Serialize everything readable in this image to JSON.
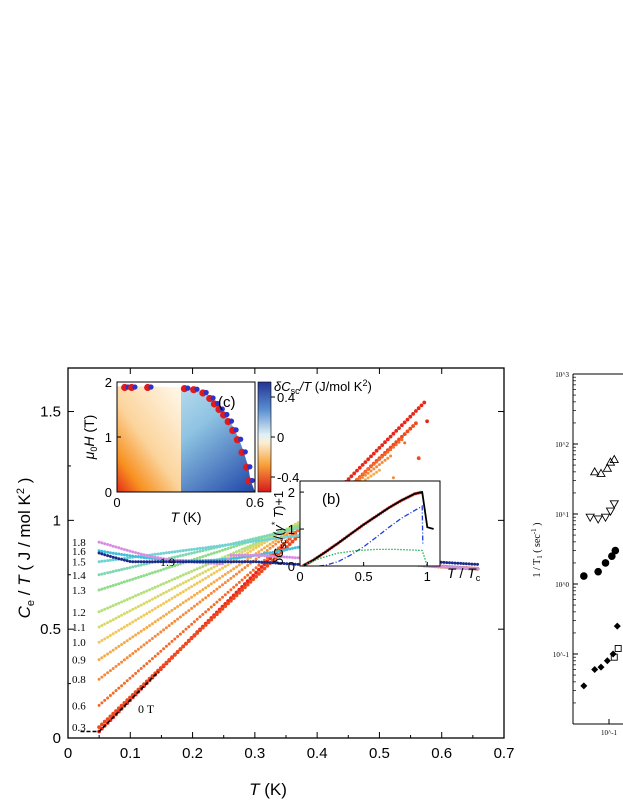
{
  "chart_data": [
    {
      "id": "main",
      "type": "scatter",
      "xlabel": "T (K)",
      "ylabel": "C_e / T ( J / mol K^2 )",
      "xlim": [
        0,
        0.7
      ],
      "ylim": [
        0,
        1.7
      ],
      "x_ticks": [
        "0",
        "0.1",
        "0.2",
        "0.3",
        "0.4",
        "0.5",
        "0.6",
        "0.7"
      ],
      "y_ticks": [
        "0",
        "0.5",
        "1",
        "1.5"
      ],
      "field_labels": [
        "1.8",
        "1.6",
        "1.5",
        "1.4",
        "1.3",
        "1.2",
        "1.1",
        "1.0",
        "0.9",
        "0.8",
        "0.6",
        "0.3"
      ],
      "annotations": [
        "1.9",
        "0 T"
      ],
      "series": [
        {
          "field": 0.0,
          "tc": 0.575,
          "c0": 0.03,
          "peak": 1.55,
          "color": "#e8271b"
        },
        {
          "field": 0.3,
          "tc": 0.56,
          "c0": 0.05,
          "peak": 1.45,
          "color": "#ef4a1e"
        },
        {
          "field": 0.6,
          "tc": 0.54,
          "c0": 0.15,
          "peak": 1.38,
          "color": "#f26b2a"
        },
        {
          "field": 0.8,
          "tc": 0.52,
          "c0": 0.27,
          "peak": 1.3,
          "color": "#f58a3a"
        },
        {
          "field": 0.9,
          "tc": 0.5,
          "c0": 0.36,
          "peak": 1.23,
          "color": "#f6ab48"
        },
        {
          "field": 1.0,
          "tc": 0.48,
          "c0": 0.44,
          "peak": 1.18,
          "color": "#f2c85a"
        },
        {
          "field": 1.1,
          "tc": 0.465,
          "c0": 0.51,
          "peak": 1.13,
          "color": "#d9d86a"
        },
        {
          "field": 1.2,
          "tc": 0.45,
          "c0": 0.58,
          "peak": 1.08,
          "color": "#b4e07a"
        },
        {
          "field": 1.3,
          "tc": 0.43,
          "c0": 0.68,
          "peak": 1.03,
          "color": "#8fdc8a"
        },
        {
          "field": 1.4,
          "tc": 0.41,
          "c0": 0.75,
          "peak": 0.99,
          "color": "#7fd8b2"
        },
        {
          "field": 1.5,
          "tc": 0.395,
          "c0": 0.81,
          "peak": 0.94,
          "color": "#70d2d4"
        },
        {
          "field": 1.6,
          "tc": 0.375,
          "c0": 0.86,
          "peak": 0.88,
          "color": "#3fbfdc"
        },
        {
          "field": 1.8,
          "tc": 0.25,
          "c0": 0.9,
          "peak": 0.8,
          "color": "#d88ee0"
        },
        {
          "field": 1.9,
          "tc": 0.0,
          "c0": 0.85,
          "peak": 0.76,
          "color": "#1b2b8c"
        }
      ],
      "normal_state": {
        "x": [
          0.3,
          0.7
        ],
        "y": [
          0.84,
          0.77
        ]
      }
    },
    {
      "id": "inset_c",
      "type": "heatmap",
      "panel_label": "(c)",
      "xlabel": "T (K)",
      "ylabel": "μ0H (T)",
      "colorbar_label": "δC_sc/T (J/mol K^2)",
      "colorbar_ticks": [
        "0.4",
        "0",
        "-0.4"
      ],
      "xlim": [
        0,
        0.6
      ],
      "ylim": [
        0,
        2
      ],
      "x_ticks": [
        "0",
        "0.6"
      ],
      "y_ticks": [
        "0",
        "1",
        "2"
      ],
      "boundary_points": [
        {
          "t": 0.04,
          "h": 1.9
        },
        {
          "t": 0.07,
          "h": 1.9
        },
        {
          "t": 0.14,
          "h": 1.9
        },
        {
          "t": 0.3,
          "h": 1.88
        },
        {
          "t": 0.34,
          "h": 1.86
        },
        {
          "t": 0.38,
          "h": 1.8
        },
        {
          "t": 0.41,
          "h": 1.7
        },
        {
          "t": 0.43,
          "h": 1.6
        },
        {
          "t": 0.45,
          "h": 1.5
        },
        {
          "t": 0.47,
          "h": 1.4
        },
        {
          "t": 0.49,
          "h": 1.28
        },
        {
          "t": 0.51,
          "h": 1.12
        },
        {
          "t": 0.53,
          "h": 0.95
        },
        {
          "t": 0.55,
          "h": 0.72
        },
        {
          "t": 0.57,
          "h": 0.45
        },
        {
          "t": 0.58,
          "h": 0.2
        }
      ]
    },
    {
      "id": "inset_b",
      "type": "line",
      "panel_label": "(b)",
      "xlabel": "T / T_c",
      "ylabel": "δC_sc/(γ* T)+1",
      "xlim": [
        0,
        1.1
      ],
      "ylim": [
        0,
        2.3
      ],
      "x_ticks": [
        "0",
        "0.5",
        "1"
      ],
      "y_ticks": [
        "0",
        "1",
        "2"
      ],
      "curves": [
        {
          "style": "total",
          "color": "#000000",
          "x": [
            0.03,
            0.1,
            0.2,
            0.3,
            0.4,
            0.5,
            0.6,
            0.7,
            0.8,
            0.9,
            0.96,
            1.0,
            1.05
          ],
          "y": [
            0.02,
            0.15,
            0.38,
            0.62,
            0.87,
            1.12,
            1.35,
            1.58,
            1.78,
            1.95,
            2.0,
            1.05,
            1.0
          ]
        },
        {
          "style": "dash-dot",
          "color": "#1e3fd8",
          "x": [
            0.15,
            0.2,
            0.3,
            0.4,
            0.5,
            0.6,
            0.7,
            0.8,
            0.9,
            0.96,
            0.965
          ],
          "y": [
            0.0,
            0.02,
            0.12,
            0.3,
            0.52,
            0.78,
            1.05,
            1.3,
            1.5,
            1.62,
            0.6
          ]
        },
        {
          "style": "dotted",
          "color": "#22b14c",
          "x": [
            0.05,
            0.15,
            0.3,
            0.45,
            0.6,
            0.75,
            0.9,
            0.96,
            1.0
          ],
          "y": [
            0.05,
            0.2,
            0.35,
            0.42,
            0.45,
            0.45,
            0.43,
            0.42,
            0.0
          ]
        }
      ]
    },
    {
      "id": "side_log",
      "type": "scatter",
      "ylabel": "1 / T_1 ( sec^-1 )",
      "y_ticks": [
        "10^3",
        "10^2",
        "10^1",
        "10^0",
        "10^-1"
      ],
      "x_tick": "10^-1",
      "markers": [
        {
          "shape": "triangle-up",
          "x": [
            0.04,
            0.06,
            0.09,
            0.11,
            0.14
          ],
          "y": [
            40,
            38,
            45,
            55,
            60
          ]
        },
        {
          "shape": "triangle-down",
          "x": [
            0.03,
            0.05,
            0.08,
            0.11,
            0.14
          ],
          "y": [
            9,
            8.5,
            9,
            11,
            14
          ]
        },
        {
          "shape": "circle",
          "x": [
            0.02,
            0.05,
            0.08,
            0.12,
            0.15
          ],
          "y": [
            1.3,
            1.5,
            2,
            2.5,
            3
          ]
        },
        {
          "shape": "square",
          "x": [
            0.14,
            0.18
          ],
          "y": [
            0.09,
            0.12
          ]
        },
        {
          "shape": "diamond",
          "x": [
            0.02,
            0.04,
            0.06,
            0.09,
            0.13,
            0.17
          ],
          "y": [
            0.035,
            0.06,
            0.065,
            0.08,
            0.1,
            0.25
          ]
        }
      ]
    }
  ]
}
